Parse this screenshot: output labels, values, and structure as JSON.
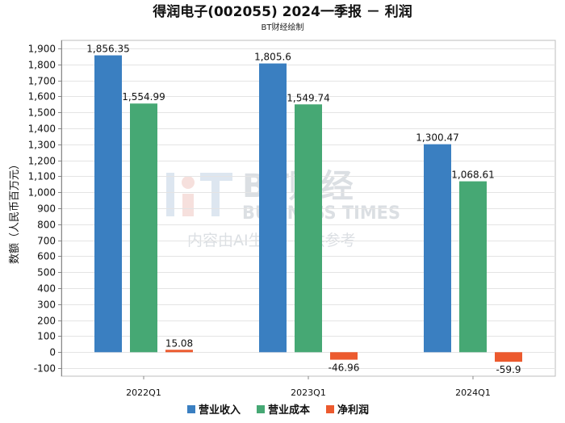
{
  "chart_data": {
    "type": "bar",
    "title": "得润电子(002055) 2024一季报 － 利润",
    "subtitle": "BT财经绘制",
    "ylabel": "数额（人民币百万元）",
    "xlabel": "",
    "categories": [
      "2022Q1",
      "2023Q1",
      "2024Q1"
    ],
    "series": [
      {
        "name": "营业收入",
        "color": "#3a7fc1",
        "values": [
          1856.35,
          1805.6,
          1300.47
        ],
        "labels": [
          "1,856.35",
          "1,805.6",
          "1,300.47"
        ]
      },
      {
        "name": "营业成本",
        "color": "#46a874",
        "values": [
          1554.99,
          1549.74,
          1068.61
        ],
        "labels": [
          "1,554.99",
          "1,549.74",
          "1,068.61"
        ]
      },
      {
        "name": "净利润",
        "color": "#ec5a2e",
        "values": [
          15.08,
          -46.96,
          -59.9
        ],
        "labels": [
          "15.08",
          "-46.96",
          "-59.9"
        ]
      }
    ],
    "ylim": [
      -150,
      1950
    ],
    "yticks": [
      -100,
      0,
      100,
      200,
      300,
      400,
      500,
      600,
      700,
      800,
      900,
      1000,
      1100,
      1200,
      1300,
      1400,
      1500,
      1600,
      1700,
      1800,
      1900
    ],
    "ytick_labels": [
      "-100",
      "0",
      "100",
      "200",
      "300",
      "400",
      "500",
      "600",
      "700",
      "800",
      "900",
      "1,000",
      "1,100",
      "1,200",
      "1,300",
      "1,400",
      "1,500",
      "1,600",
      "1,700",
      "1,800",
      "1,900"
    ],
    "grid": true,
    "legend": "bottom"
  },
  "watermark": {
    "brand_cn": "BT财经",
    "brand_en": "BUSINESS TIMES",
    "note": "内容由AI生成，仅供参考"
  }
}
